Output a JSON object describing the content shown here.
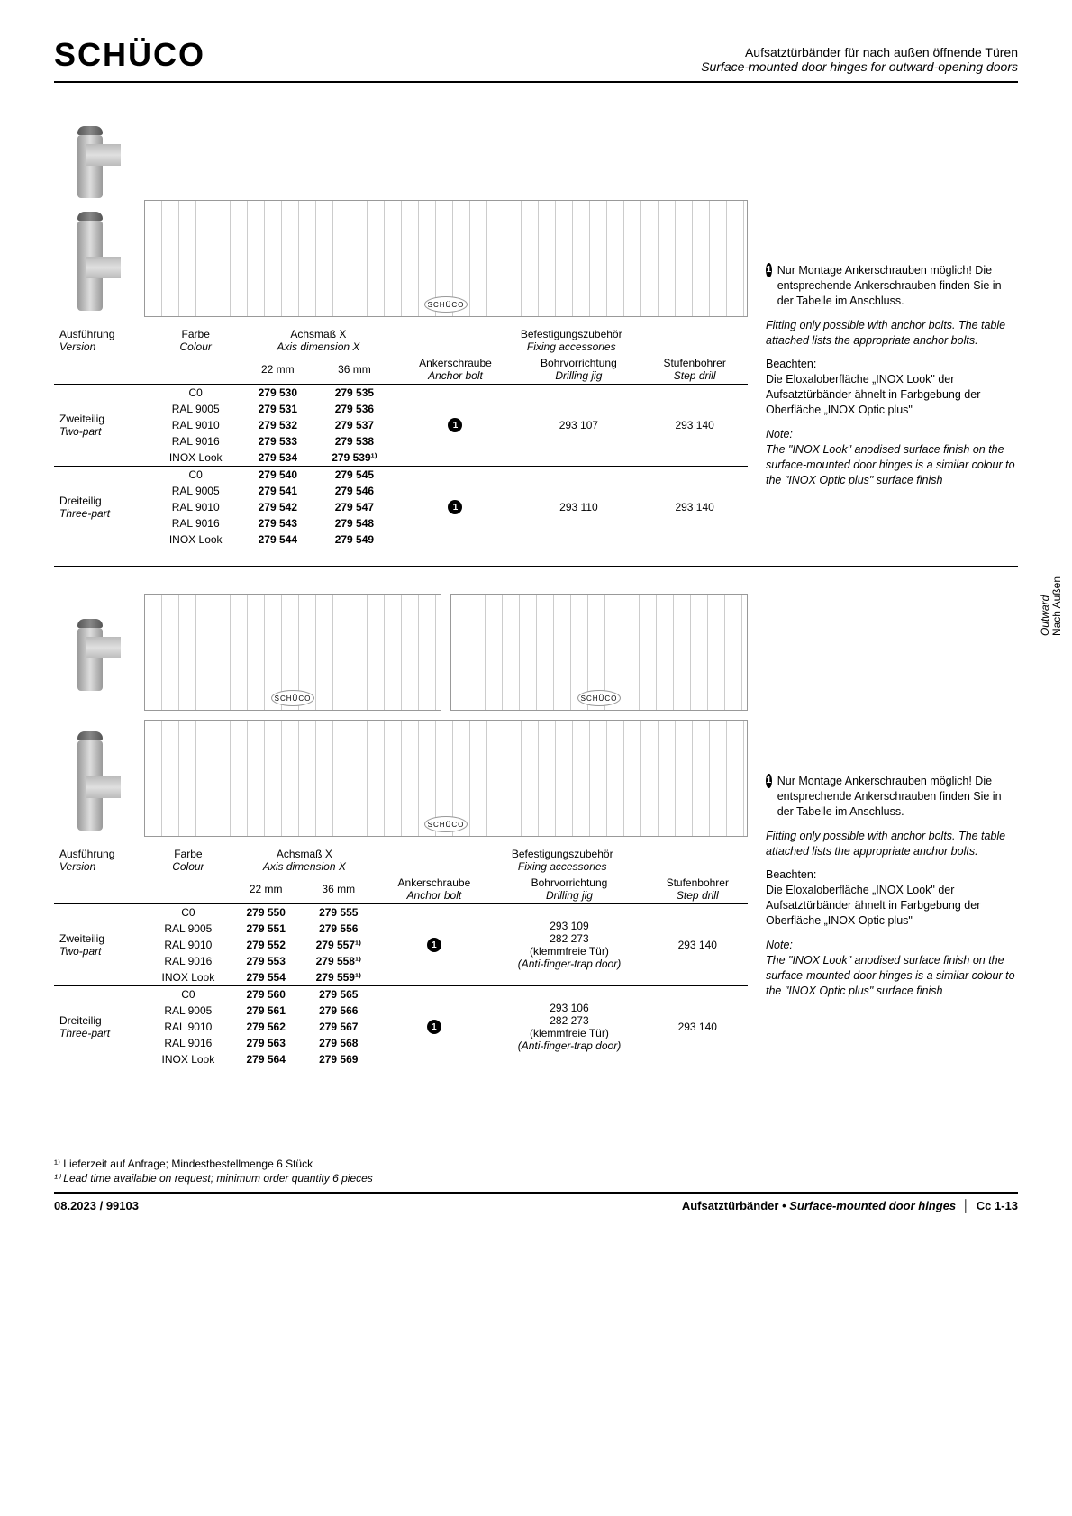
{
  "logo": "SCHÜCO",
  "header": {
    "de": "Aufsatztürbänder für nach außen öffnende Türen",
    "en": "Surface-mounted door hinges for outward-opening doors"
  },
  "sideTab": {
    "en": "Outward",
    "de": "Nach Außen"
  },
  "tableHeaders": {
    "version_de": "Ausführung",
    "version_en": "Version",
    "colour_de": "Farbe",
    "colour_en": "Colour",
    "axis_de": "Achsmaß X",
    "axis_en": "Axis dimension X",
    "fixing_de": "Befestigungszubehör",
    "fixing_en": "Fixing accessories",
    "anchor_de": "Ankerschraube",
    "anchor_en": "Anchor bolt",
    "drill_de": "Bohrvorrichtung",
    "drill_en": "Drilling jig",
    "step_de": "Stufenbohrer",
    "step_en": "Step drill",
    "mm22": "22 mm",
    "mm36": "36 mm"
  },
  "versions": {
    "two_de": "Zweiteilig",
    "two_en": "Two-part",
    "three_de": "Dreiteilig",
    "three_en": "Three-part"
  },
  "colours": [
    "C0",
    "RAL 9005",
    "RAL 9010",
    "RAL 9016",
    "INOX Look"
  ],
  "table1": {
    "two": {
      "mm22": [
        "279 530",
        "279 531",
        "279 532",
        "279 533",
        "279 534"
      ],
      "mm36": [
        "279 535",
        "279 536",
        "279 537",
        "279 538",
        "279 539¹⁾"
      ],
      "jig": "293 107",
      "step": "293 140"
    },
    "three": {
      "mm22": [
        "279 540",
        "279 541",
        "279 542",
        "279 543",
        "279 544"
      ],
      "mm36": [
        "279 545",
        "279 546",
        "279 547",
        "279 548",
        "279 549"
      ],
      "jig": "293 110",
      "step": "293 140"
    }
  },
  "table2": {
    "two": {
      "mm22": [
        "279 550",
        "279 551",
        "279 552",
        "279 553",
        "279 554"
      ],
      "mm36": [
        "279 555",
        "279 556",
        "279 557¹⁾",
        "279 558¹⁾",
        "279 559¹⁾"
      ],
      "jig_a": "293 109",
      "jig_b": "282 273",
      "jig_note_de": "(klemmfreie Tür)",
      "jig_note_en": "(Anti-finger-trap door)",
      "step": "293 140"
    },
    "three": {
      "mm22": [
        "279 560",
        "279 561",
        "279 562",
        "279 563",
        "279 564"
      ],
      "mm36": [
        "279 565",
        "279 566",
        "279 567",
        "279 568",
        "279 569"
      ],
      "jig_a": "293 106",
      "jig_b": "282 273",
      "jig_note_de": "(klemmfreie Tür)",
      "jig_note_en": "(Anti-finger-trap door)",
      "step": "293 140"
    }
  },
  "notes": {
    "n1_de": "Nur Montage Ankerschrauben möglich! Die entsprechende Ankerschrauben finden Sie in der Tabelle im Anschluss.",
    "n1_en": "Fitting only possible with anchor bolts. The table attached lists the appropriate anchor bolts.",
    "n2_de_lead": "Beachten:",
    "n2_de": "Die Eloxaloberfläche „INOX Look\" der Aufsatztürbänder ähnelt in Farbgebung der Oberfläche „INOX Optic plus\"",
    "n2_en_lead": "Note:",
    "n2_en": "The \"INOX Look\" anodised surface finish on the surface-mounted door hinges is a similar colour to the \"INOX Optic plus\" surface finish"
  },
  "footnote": {
    "de": "¹⁾ Lieferzeit auf Anfrage; Mindestbestellmenge 6 Stück",
    "en": "¹⁾ Lead time available on request; minimum order quantity 6 pieces"
  },
  "footer": {
    "left": "08.2023 / 99103",
    "right_de": "Aufsatztürbänder",
    "right_en": "Surface-mounted door hinges",
    "page": "Cc 1-13",
    "bullet": "•",
    "sep": "│"
  },
  "circled1": "1"
}
